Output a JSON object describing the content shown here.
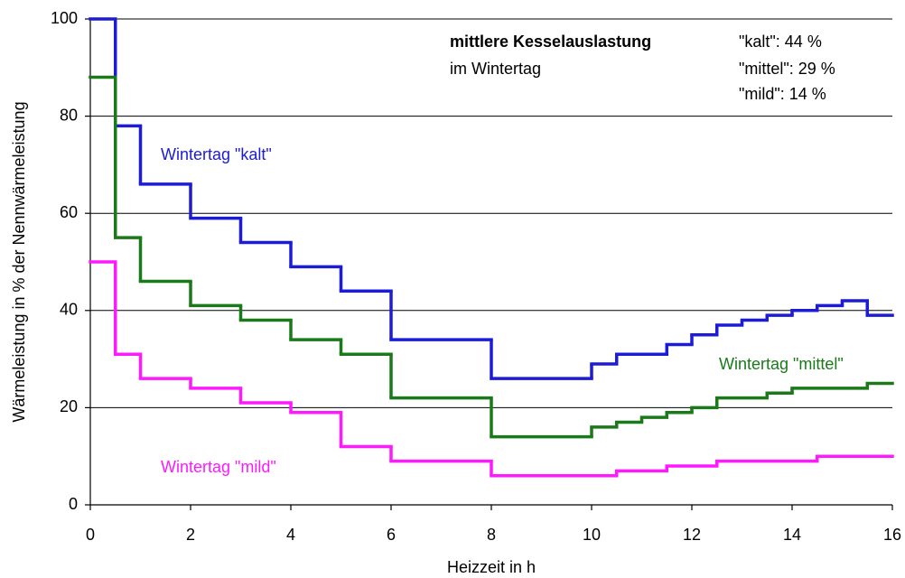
{
  "chart_data": {
    "type": "step",
    "xlabel": "Heizzeit in h",
    "ylabel": "Wärmeleistung in % der Nennwärmeleistung",
    "xlim": [
      0,
      16
    ],
    "xticks": [
      0,
      2,
      4,
      6,
      8,
      10,
      12,
      14,
      16
    ],
    "ylim": [
      0,
      100
    ],
    "yticks": [
      0,
      20,
      40,
      60,
      80,
      100
    ],
    "grid": true,
    "annotation": {
      "title": "mittlere Kesselauslastung",
      "subtitle": "im Wintertag",
      "lines": [
        "\"kalt\": 44 %",
        "\"mittel\": 29 %",
        "\"mild\": 14 %"
      ]
    },
    "series": [
      {
        "name": "Wintertag \"kalt\"",
        "color": "#1c1cd8",
        "bins": [
          0,
          0.5,
          1,
          2,
          3,
          4,
          5,
          6,
          8,
          10,
          10.5,
          11.5,
          12,
          12.5,
          13,
          13.5,
          14,
          14.5,
          15,
          15.5,
          16
        ],
        "values": [
          100,
          78,
          66,
          59,
          54,
          49,
          44,
          34,
          26,
          29,
          31,
          33,
          35,
          37,
          38,
          39,
          40,
          41,
          42,
          39
        ]
      },
      {
        "name": "Wintertag \"mittel\"",
        "color": "#1a7a1a",
        "bins": [
          0,
          0.5,
          1,
          2,
          3,
          4,
          5,
          6,
          8,
          10,
          10.5,
          11,
          11.5,
          12,
          12.5,
          13.5,
          14,
          15.5,
          16
        ],
        "values": [
          88,
          55,
          46,
          41,
          38,
          34,
          31,
          22,
          14,
          16,
          17,
          18,
          19,
          20,
          22,
          23,
          24,
          25
        ]
      },
      {
        "name": "Wintertag \"mild\"",
        "color": "#ff19ff",
        "bins": [
          0,
          0.5,
          1,
          2,
          3,
          4,
          5,
          6,
          8,
          10.5,
          11.5,
          12.5,
          14.5,
          16
        ],
        "values": [
          50,
          31,
          26,
          24,
          21,
          19,
          12,
          9,
          6,
          7,
          8,
          9,
          10
        ]
      }
    ]
  }
}
